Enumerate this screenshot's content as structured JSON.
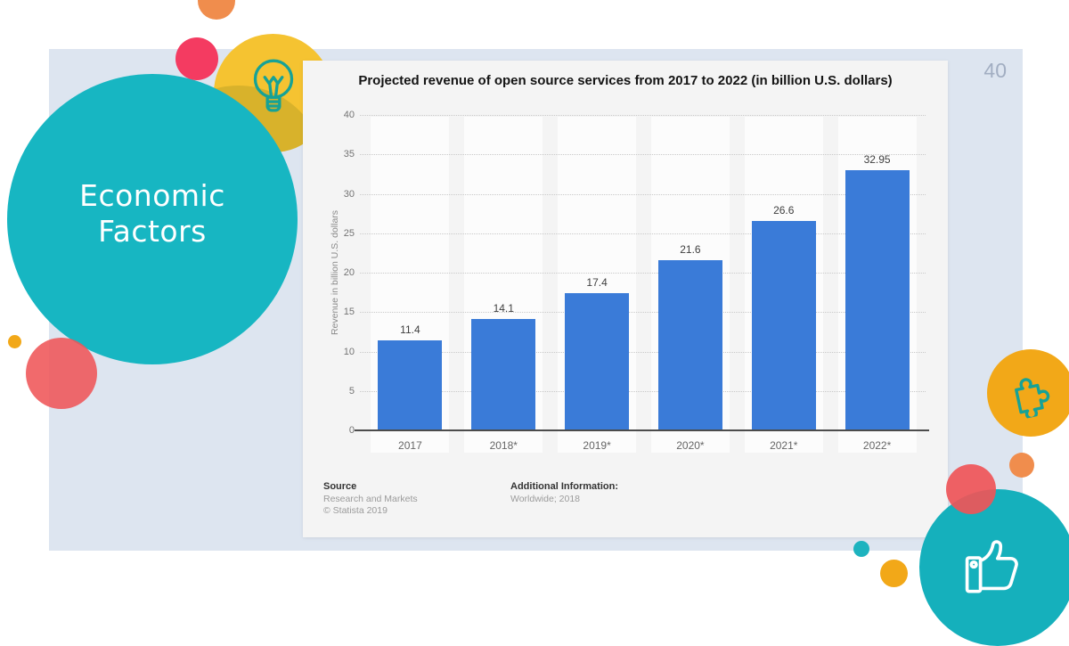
{
  "slide": {
    "page_number": "40",
    "circle_title": {
      "line1": "Economic",
      "line2": "Factors"
    }
  },
  "chart": {
    "title": "Projected revenue of open source services from 2017 to 2022 (in billion U.S. dollars)",
    "y_axis_label": "Revenue in billion U.S. dollars",
    "footer": {
      "source_label": "Source",
      "source_name": "Research and Markets",
      "copyright": "© Statista 2019",
      "additional_label": "Additional Information:",
      "additional_value": "Worldwide; 2018"
    },
    "colors": {
      "bar": "#3a7bd8",
      "panel_bg": "#f4f4f4",
      "stripe": "#fcfcfc"
    }
  },
  "chart_data": {
    "type": "bar",
    "categories": [
      "2017",
      "2018*",
      "2019*",
      "2020*",
      "2021*",
      "2022*"
    ],
    "values": [
      11.4,
      14.1,
      17.4,
      21.6,
      26.6,
      32.95
    ],
    "value_labels": [
      "11.4",
      "14.1",
      "17.4",
      "21.6",
      "26.6",
      "32.95"
    ],
    "title": "Projected revenue of open source services from 2017 to 2022 (in billion U.S. dollars)",
    "xlabel": "",
    "ylabel": "Revenue in billion U.S. dollars",
    "ylim": [
      0,
      40
    ],
    "ytick_step": 5,
    "grid": "horizontal-dotted",
    "legend": "none",
    "bar_color": "#3a7bd8"
  },
  "decorations": {
    "colors": {
      "slide_bg": "#dde5f0",
      "teal": "#17b6c2",
      "teal_dark": "#15b0bc",
      "yellow": "#f5c331",
      "yellow_orange": "#f2a818",
      "orange": "#f08d4d",
      "pink": "#f43b61",
      "red": "#ee5a5c",
      "icon_teal": "#16a296"
    },
    "icons": [
      "lightbulb-icon",
      "puzzle-icon",
      "thumbs-up-icon"
    ]
  }
}
